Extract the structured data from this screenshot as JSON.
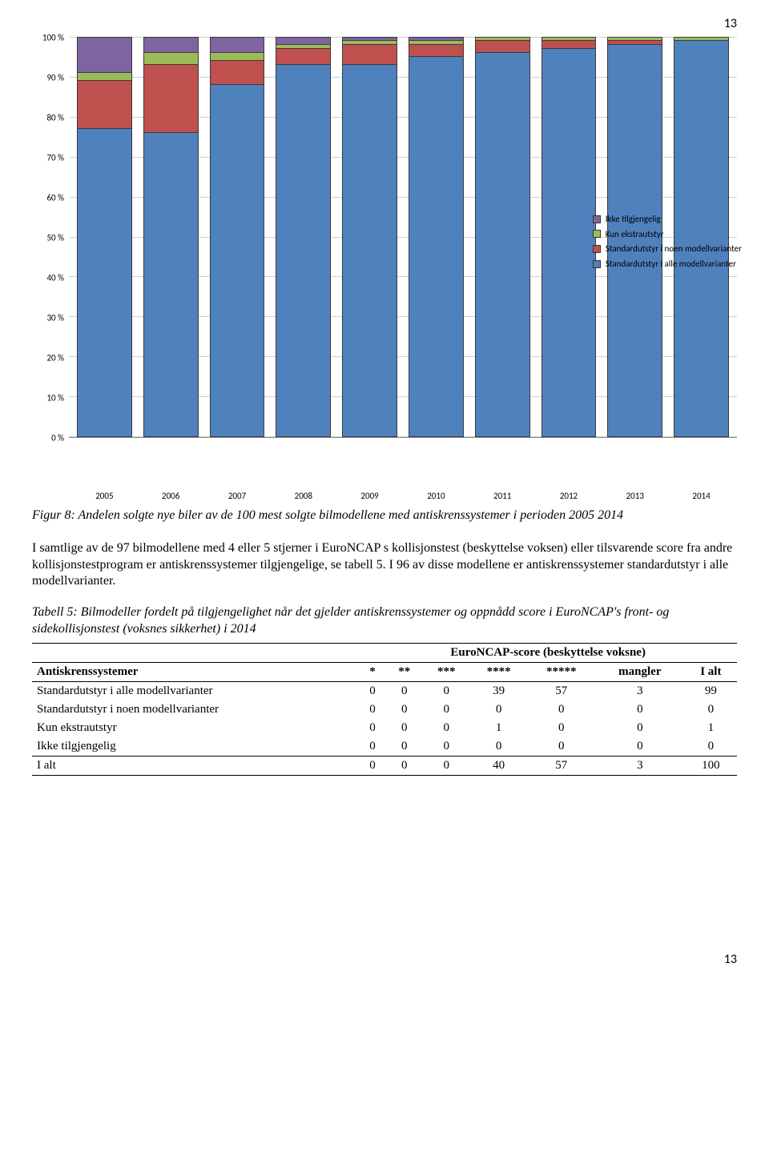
{
  "page_number_top": "13",
  "page_number_bottom": "13",
  "chart": {
    "type": "stacked_bar_percent",
    "categories": [
      "2005",
      "2006",
      "2007",
      "2008",
      "2009",
      "2010",
      "2011",
      "2012",
      "2013",
      "2014"
    ],
    "ylim": [
      0,
      100
    ],
    "ytick_step": 10,
    "y_suffix": " %",
    "background_color": "#ffffff",
    "grid_color": "#cfcfcf",
    "series": [
      {
        "key": "std_all",
        "label": "Standardutstyr i alle modellvarianter",
        "color": "#4f81bd"
      },
      {
        "key": "std_some",
        "label": "Standardutstyr i noen modellvarianter",
        "color": "#c0504d"
      },
      {
        "key": "kun",
        "label": "Kun ekstrautstyr",
        "color": "#9bbb59"
      },
      {
        "key": "ikke",
        "label": "Ikke tilgjengelig",
        "color": "#8064a2"
      }
    ],
    "legend_order": [
      "ikke",
      "kun",
      "std_some",
      "std_all"
    ],
    "values": [
      {
        "std_all": 77,
        "std_some": 12,
        "kun": 2,
        "ikke": 9
      },
      {
        "std_all": 76,
        "std_some": 17,
        "kun": 3,
        "ikke": 4
      },
      {
        "std_all": 88,
        "std_some": 6,
        "kun": 2,
        "ikke": 4
      },
      {
        "std_all": 93,
        "std_some": 4,
        "kun": 1,
        "ikke": 2
      },
      {
        "std_all": 93,
        "std_some": 5,
        "kun": 1,
        "ikke": 1
      },
      {
        "std_all": 95,
        "std_some": 3,
        "kun": 1,
        "ikke": 1
      },
      {
        "std_all": 96,
        "std_some": 3,
        "kun": 1,
        "ikke": 0
      },
      {
        "std_all": 97,
        "std_some": 2,
        "kun": 1,
        "ikke": 0
      },
      {
        "std_all": 98,
        "std_some": 1,
        "kun": 1,
        "ikke": 0
      },
      {
        "std_all": 99,
        "std_some": 0,
        "kun": 1,
        "ikke": 0
      }
    ]
  },
  "figure_caption": "Figur 8: Andelen solgte nye biler av de 100 mest solgte bilmodellene med antiskrenssystemer i perioden 2005 2014",
  "paragraph_1": "I samtlige av de 97 bilmodellene med 4 eller 5 stjerner i EuroNCAP s kollisjonstest (beskyttelse voksen) eller tilsvarende score fra andre kollisjonstestprogram er antiskrenssystemer tilgjengelige, se tabell 5. I 96 av disse modellene er antiskrenssystemer standardutstyr i alle modellvarianter.",
  "table_caption": "Tabell 5: Bilmodeller fordelt på tilgjengelighet når det gjelder antiskrenssystemer og oppnådd score i EuroNCAP's front- og sidekollisjonstest (voksnes sikkerhet) i 2014",
  "table": {
    "super_header": "EuroNCAP-score (beskyttelse voksne)",
    "row_header_label": "Antiskrenssystemer",
    "columns": [
      "*",
      "**",
      "***",
      "****",
      "*****",
      "mangler",
      "I alt"
    ],
    "rows": [
      {
        "label": "Standardutstyr i alle modellvarianter",
        "cells": [
          "0",
          "0",
          "0",
          "39",
          "57",
          "3",
          "99"
        ]
      },
      {
        "label": "Standardutstyr i noen modellvarianter",
        "cells": [
          "0",
          "0",
          "0",
          "0",
          "0",
          "0",
          "0"
        ]
      },
      {
        "label": "Kun ekstrautstyr",
        "cells": [
          "0",
          "0",
          "0",
          "1",
          "0",
          "0",
          "1"
        ]
      },
      {
        "label": "Ikke tilgjengelig",
        "cells": [
          "0",
          "0",
          "0",
          "0",
          "0",
          "0",
          "0"
        ]
      }
    ],
    "total": {
      "label": "I alt",
      "cells": [
        "0",
        "0",
        "0",
        "40",
        "57",
        "3",
        "100"
      ]
    }
  }
}
